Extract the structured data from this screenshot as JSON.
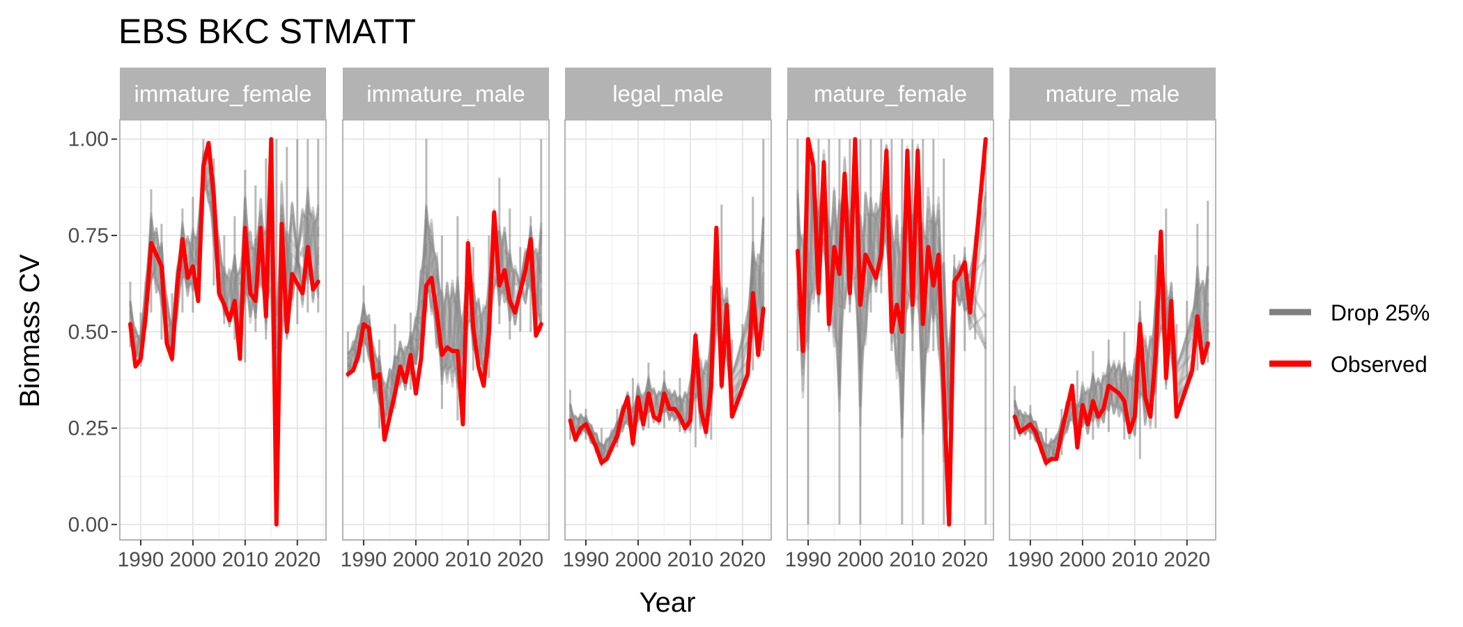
{
  "chart_data": {
    "type": "line",
    "title": "EBS BKC STMATT",
    "xlabel": "Year",
    "ylabel": "Biomass CV",
    "xlim": [
      1986,
      2025.5
    ],
    "ylim": [
      -0.04,
      1.05
    ],
    "x_ticks": [
      1990,
      2000,
      2010,
      2020
    ],
    "x_tick_labels": [
      "1990",
      "2000",
      "2010",
      "2020"
    ],
    "y_ticks": [
      0,
      0.25,
      0.5,
      0.75,
      1.0
    ],
    "y_tick_labels": [
      "0.00",
      "0.25",
      "0.50",
      "0.75",
      "1.00"
    ],
    "grid": true,
    "legend_position": "right",
    "legend": [
      {
        "label": "Drop 25%",
        "color": "#808080"
      },
      {
        "label": "Observed",
        "color": "#ff0000"
      }
    ],
    "panels": [
      {
        "name": "immature_female",
        "observed": {
          "x": [
            1988,
            1989,
            1990,
            1991,
            1992,
            1993,
            1994,
            1995,
            1996,
            1997,
            1998,
            1999,
            2000,
            2001,
            2002,
            2003,
            2004,
            2005,
            2006,
            2007,
            2008,
            2009,
            2010,
            2011,
            2012,
            2013,
            2014,
            2015,
            2016,
            2017,
            2018,
            2019,
            2021,
            2022,
            2023,
            2024
          ],
          "y": [
            0.52,
            0.41,
            0.43,
            0.55,
            0.73,
            0.7,
            0.67,
            0.47,
            0.43,
            0.62,
            0.74,
            0.64,
            0.67,
            0.58,
            0.93,
            0.99,
            0.85,
            0.6,
            0.57,
            0.53,
            0.58,
            0.43,
            0.77,
            0.6,
            0.58,
            0.77,
            0.54,
            1.0,
            0.0,
            0.78,
            0.5,
            0.65,
            0.6,
            0.72,
            0.61,
            0.63
          ]
        },
        "drop_range": {
          "x": [
            1988,
            1990,
            1992,
            1994,
            1996,
            1998,
            2000,
            2002,
            2004,
            2006,
            2008,
            2010,
            2012,
            2014,
            2016,
            2018,
            2020,
            2022,
            2024
          ],
          "min": [
            0.46,
            0.41,
            0.55,
            0.48,
            0.42,
            0.55,
            0.55,
            0.8,
            0.62,
            0.52,
            0.48,
            0.42,
            0.5,
            0.48,
            0.0,
            0.48,
            0.52,
            0.55,
            0.55
          ],
          "max": [
            0.63,
            0.55,
            0.87,
            0.78,
            0.6,
            0.82,
            0.85,
            1.0,
            0.95,
            0.75,
            0.8,
            0.92,
            0.88,
            0.95,
            1.0,
            0.98,
            1.0,
            1.0,
            1.0
          ]
        }
      },
      {
        "name": "immature_male",
        "observed": {
          "x": [
            1987,
            1988,
            1989,
            1990,
            1991,
            1992,
            1993,
            1994,
            1995,
            1996,
            1997,
            1998,
            1999,
            2000,
            2001,
            2002,
            2003,
            2004,
            2005,
            2006,
            2007,
            2008,
            2009,
            2010,
            2011,
            2012,
            2013,
            2014,
            2015,
            2016,
            2017,
            2018,
            2019,
            2021,
            2022,
            2023,
            2024
          ],
          "y": [
            0.39,
            0.4,
            0.44,
            0.52,
            0.51,
            0.38,
            0.39,
            0.22,
            0.28,
            0.34,
            0.41,
            0.37,
            0.44,
            0.34,
            0.43,
            0.62,
            0.64,
            0.55,
            0.44,
            0.46,
            0.45,
            0.45,
            0.26,
            0.73,
            0.51,
            0.41,
            0.36,
            0.5,
            0.81,
            0.62,
            0.66,
            0.58,
            0.55,
            0.66,
            0.74,
            0.49,
            0.52
          ]
        },
        "drop_range": {
          "x": [
            1987,
            1990,
            1993,
            1996,
            1999,
            2002,
            2005,
            2008,
            2011,
            2014,
            2016,
            2018,
            2020,
            2022,
            2024
          ],
          "min": [
            0.38,
            0.42,
            0.25,
            0.3,
            0.35,
            0.55,
            0.3,
            0.27,
            0.4,
            0.38,
            0.52,
            0.48,
            0.5,
            0.5,
            0.5
          ],
          "max": [
            0.5,
            0.62,
            0.48,
            0.52,
            0.55,
            1.0,
            0.75,
            0.8,
            0.72,
            0.75,
            0.9,
            0.82,
            0.72,
            0.8,
            1.0
          ]
        }
      },
      {
        "name": "legal_male",
        "observed": {
          "x": [
            1987,
            1988,
            1989,
            1990,
            1991,
            1992,
            1993,
            1994,
            1995,
            1996,
            1997,
            1998,
            1999,
            2000,
            2001,
            2002,
            2003,
            2004,
            2005,
            2006,
            2007,
            2008,
            2009,
            2010,
            2011,
            2012,
            2013,
            2014,
            2015,
            2016,
            2017,
            2018,
            2021,
            2022,
            2023,
            2024
          ],
          "y": [
            0.27,
            0.22,
            0.25,
            0.26,
            0.23,
            0.2,
            0.16,
            0.17,
            0.2,
            0.23,
            0.29,
            0.33,
            0.21,
            0.33,
            0.26,
            0.34,
            0.28,
            0.27,
            0.34,
            0.3,
            0.3,
            0.28,
            0.25,
            0.27,
            0.49,
            0.3,
            0.24,
            0.36,
            0.77,
            0.36,
            0.57,
            0.28,
            0.39,
            0.6,
            0.44,
            0.56
          ]
        },
        "drop_range": {
          "x": [
            1987,
            1990,
            1993,
            1996,
            1999,
            2002,
            2005,
            2008,
            2011,
            2014,
            2016,
            2018,
            2020,
            2022,
            2024
          ],
          "min": [
            0.22,
            0.22,
            0.15,
            0.2,
            0.2,
            0.25,
            0.25,
            0.24,
            0.2,
            0.22,
            0.35,
            0.28,
            0.33,
            0.4,
            0.45
          ],
          "max": [
            0.35,
            0.3,
            0.25,
            0.3,
            0.38,
            0.42,
            0.4,
            0.38,
            0.5,
            0.62,
            0.83,
            0.48,
            0.52,
            0.85,
            1.0
          ]
        }
      },
      {
        "name": "mature_female",
        "observed": {
          "x": [
            1988,
            1989,
            1990,
            1991,
            1992,
            1993,
            1994,
            1995,
            1996,
            1997,
            1998,
            1999,
            2000,
            2001,
            2002,
            2003,
            2004,
            2005,
            2006,
            2007,
            2008,
            2009,
            2010,
            2011,
            2012,
            2013,
            2014,
            2015,
            2016,
            2017,
            2018,
            2019,
            2020,
            2021,
            2024
          ],
          "y": [
            0.71,
            0.45,
            1.0,
            0.93,
            0.6,
            0.94,
            0.52,
            0.72,
            0.65,
            0.91,
            0.6,
            1.0,
            0.57,
            0.7,
            0.67,
            0.64,
            0.7,
            0.97,
            0.5,
            0.57,
            0.5,
            0.97,
            0.57,
            0.97,
            0.52,
            0.72,
            0.62,
            0.7,
            0.35,
            0.0,
            0.63,
            0.65,
            0.68,
            0.55,
            1.0
          ]
        },
        "drop_range": {
          "x": [
            1988,
            1990,
            1992,
            1994,
            1996,
            1998,
            2000,
            2002,
            2004,
            2006,
            2008,
            2010,
            2012,
            2014,
            2016,
            2018,
            2020,
            2022,
            2024
          ],
          "min": [
            0.45,
            0.0,
            0.55,
            0.5,
            0.0,
            0.55,
            0.0,
            0.55,
            0.6,
            0.45,
            0.0,
            0.45,
            0.0,
            0.45,
            0.0,
            0.55,
            0.45,
            0.48,
            0.0
          ],
          "max": [
            1.0,
            1.0,
            1.0,
            1.0,
            1.0,
            1.0,
            1.0,
            1.0,
            1.0,
            1.0,
            1.0,
            1.0,
            1.0,
            1.0,
            0.95,
            0.7,
            0.72,
            0.75,
            1.0
          ]
        }
      },
      {
        "name": "mature_male",
        "observed": {
          "x": [
            1987,
            1988,
            1989,
            1990,
            1991,
            1992,
            1993,
            1994,
            1995,
            1996,
            1997,
            1998,
            1999,
            2000,
            2001,
            2002,
            2003,
            2004,
            2005,
            2006,
            2007,
            2008,
            2009,
            2010,
            2011,
            2012,
            2013,
            2014,
            2015,
            2016,
            2017,
            2018,
            2021,
            2022,
            2023,
            2024
          ],
          "y": [
            0.28,
            0.24,
            0.25,
            0.26,
            0.24,
            0.2,
            0.16,
            0.17,
            0.17,
            0.24,
            0.3,
            0.36,
            0.2,
            0.31,
            0.26,
            0.32,
            0.28,
            0.3,
            0.36,
            0.35,
            0.34,
            0.32,
            0.24,
            0.28,
            0.52,
            0.33,
            0.28,
            0.44,
            0.76,
            0.38,
            0.58,
            0.28,
            0.4,
            0.54,
            0.42,
            0.47
          ]
        },
        "drop_range": {
          "x": [
            1987,
            1990,
            1993,
            1996,
            1999,
            2002,
            2005,
            2008,
            2011,
            2014,
            2016,
            2018,
            2020,
            2022,
            2024
          ],
          "min": [
            0.22,
            0.22,
            0.15,
            0.18,
            0.2,
            0.22,
            0.24,
            0.22,
            0.17,
            0.25,
            0.35,
            0.28,
            0.35,
            0.4,
            0.42
          ],
          "max": [
            0.36,
            0.31,
            0.25,
            0.3,
            0.4,
            0.45,
            0.48,
            0.5,
            0.58,
            0.7,
            0.82,
            0.52,
            0.58,
            0.78,
            0.84
          ]
        }
      }
    ]
  },
  "colors": {
    "observed": "#ff0000",
    "drop": "#808080",
    "strip_bg": "#b3b3b3",
    "panel_border": "#b3b3b3",
    "grid_major": "#e5e5e5",
    "grid_minor": "#f2f2f2"
  }
}
